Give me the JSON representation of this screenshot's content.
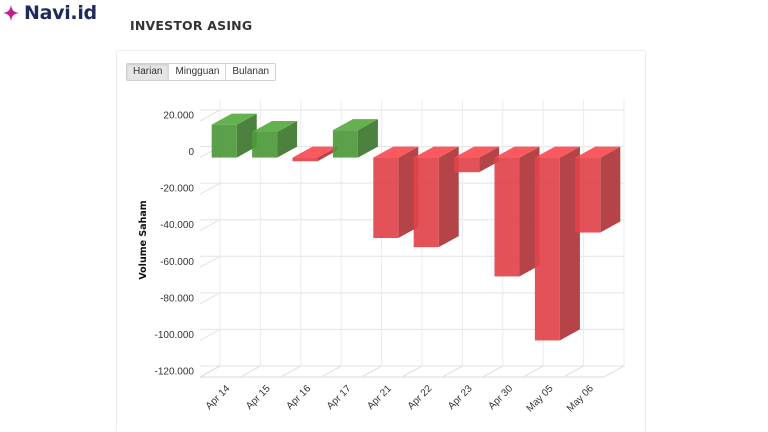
{
  "brand": {
    "name": "Navi.id",
    "icon": "sparkle-icon",
    "color": "#1f2a5c",
    "icon_color": "#c21f8a"
  },
  "section": {
    "title": "INVESTOR ASING"
  },
  "tabs": [
    {
      "label": "Harian",
      "active": true
    },
    {
      "label": "Mingguan",
      "active": false
    },
    {
      "label": "Bulanan",
      "active": false
    }
  ],
  "chart_data": {
    "type": "bar",
    "title": "",
    "xlabel": "",
    "ylabel": "Volume Saham",
    "ylim": [
      -120000,
      20000
    ],
    "yticks": [
      20000,
      0,
      -20000,
      -40000,
      -60000,
      -80000,
      -100000,
      -120000
    ],
    "ytick_labels": [
      "20.000",
      "0",
      "-20.000",
      "-40.000",
      "-60.000",
      "-80.000",
      "-100.000",
      "-120.000"
    ],
    "categories": [
      "Apr 14",
      "Apr 15",
      "Apr 16",
      "Apr 17",
      "Apr 21",
      "Apr 22",
      "Apr 23",
      "Apr 30",
      "May 05",
      "May 06"
    ],
    "values": [
      18000,
      14000,
      -2000,
      15000,
      -44000,
      -49000,
      -8000,
      -65000,
      -100000,
      -41000
    ],
    "grid": true,
    "three_d": true,
    "positive_color": "#4e9a3a",
    "negative_color": "#e0444a"
  }
}
